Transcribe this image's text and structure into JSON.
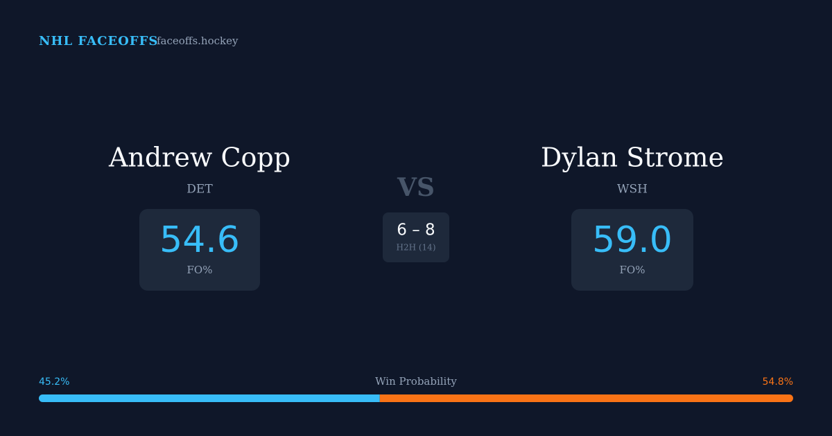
{
  "header": {
    "title": "NHL FACEOFFS",
    "site": "faceoffs.hockey"
  },
  "players": [
    {
      "name": "Andrew Copp",
      "team": "DET",
      "stat_value": "54.6",
      "stat_label": "FO%"
    },
    {
      "name": "Dylan Strome",
      "team": "WSH",
      "stat_value": "59.0",
      "stat_label": "FO%"
    }
  ],
  "versus": "VS",
  "head_to_head": {
    "record": "6 – 8",
    "label": "H2H (14)"
  },
  "win_probability": {
    "label": "Win Probability",
    "series": [
      {
        "name": "Andrew Copp",
        "color": "#38bdf8",
        "value": 45.2,
        "value_label": "45.2%"
      },
      {
        "name": "Dylan Strome",
        "color": "#f97316",
        "value": 54.8,
        "value_label": "54.8%"
      }
    ]
  }
}
